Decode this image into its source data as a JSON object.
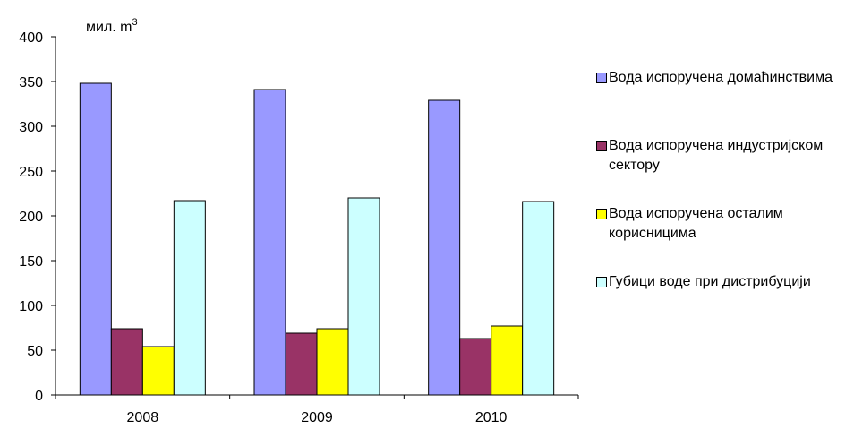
{
  "chart_data": {
    "type": "bar",
    "unit_label": "мил. m",
    "unit_superscript": "3",
    "categories": [
      "2008",
      "2009",
      "2010"
    ],
    "ylim": [
      0,
      400
    ],
    "yticks": [
      0,
      50,
      100,
      150,
      200,
      250,
      300,
      350,
      400
    ],
    "ytick_labels": [
      "0",
      "50",
      "100",
      "150",
      "200",
      "250",
      "300",
      "350",
      "400"
    ],
    "grid": false,
    "legend_position": "right",
    "series": [
      {
        "name": "Вода испоручена домаћинствима",
        "color": "#9999ff",
        "values": [
          348,
          341,
          329
        ]
      },
      {
        "name": "Вода испоручена индустријском сектору",
        "color": "#993366",
        "values": [
          74,
          69,
          63
        ]
      },
      {
        "name": "Вода испоручена осталим корисницима",
        "color": "#ffff00",
        "values": [
          54,
          74,
          77
        ]
      },
      {
        "name": "Губици воде при дистрибуцији",
        "color": "#ccffff",
        "values": [
          217,
          220,
          216
        ]
      }
    ]
  }
}
